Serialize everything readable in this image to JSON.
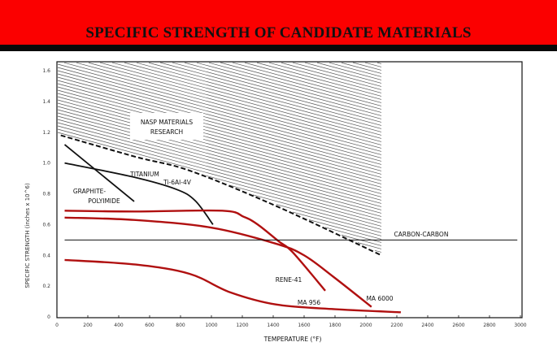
{
  "chart_data": {
    "type": "line",
    "title": "SPECIFIC STRENGTH OF CANDIDATE MATERIALS",
    "xlabel": "TEMPERATURE (°F)",
    "ylabel": "SPECIFIC STRENGTH (inches x 10^6)",
    "xlim": [
      0,
      3000
    ],
    "ylim": [
      0,
      1.65
    ],
    "xticks": [
      0,
      200,
      400,
      600,
      800,
      1000,
      1200,
      1400,
      1600,
      1800,
      2000,
      2200,
      2400,
      2600,
      2800,
      3000
    ],
    "yticks": [
      0,
      0.2,
      0.4,
      0.6,
      0.8,
      1.0,
      1.2,
      1.4,
      1.6
    ],
    "grid": false,
    "colors": {
      "banner": "#fb0000",
      "alloy": "#b01010",
      "other": "#111111"
    },
    "regions": [
      {
        "name": "NASP MATERIALS RESEARCH",
        "label_lines": [
          "NASP MATERIALS",
          "RESEARCH"
        ],
        "style": "hatched",
        "x_range": [
          0,
          2100
        ],
        "lower_boundary": {
          "x": [
            0,
            510,
            860,
            1420,
            2100
          ],
          "y": [
            1.18,
            1.04,
            0.95,
            0.72,
            0.4
          ]
        }
      }
    ],
    "series": [
      {
        "name": "GRAPHITE-POLYIMIDE",
        "label_lines": [
          "GRAPHITE-",
          "POLYIMIDE"
        ],
        "color": "#111111",
        "x": [
          50,
          500
        ],
        "y": [
          1.12,
          0.75
        ]
      },
      {
        "name": "TITANIUM Ti-6Al-4V",
        "label_lines": [
          "TITANIUM",
          "Ti-6Al-4V"
        ],
        "color": "#111111",
        "x": [
          50,
          490,
          770,
          895,
          1010
        ],
        "y": [
          1.0,
          0.91,
          0.83,
          0.755,
          0.6
        ]
      },
      {
        "name": "RENE-41",
        "color": "#b01010",
        "x": [
          50,
          500,
          1070,
          1210,
          1300,
          1437,
          1526,
          1737
        ],
        "y": [
          0.69,
          0.685,
          0.69,
          0.65,
          0.6,
          0.49,
          0.42,
          0.17
        ]
      },
      {
        "name": "MA 6000",
        "color": "#b01010",
        "x": [
          50,
          500,
          1000,
          1420,
          1600,
          1790,
          2036
        ],
        "y": [
          0.645,
          0.63,
          0.58,
          0.475,
          0.4,
          0.26,
          0.065
        ]
      },
      {
        "name": "MA 956",
        "color": "#b01010",
        "x": [
          50,
          510,
          858,
          1121,
          1421,
          1800,
          2226
        ],
        "y": [
          0.37,
          0.34,
          0.28,
          0.16,
          0.08,
          0.05,
          0.03
        ]
      },
      {
        "name": "CARBON-CARBON",
        "color": "#111111",
        "x": [
          50,
          2980
        ],
        "y": [
          0.5,
          0.5
        ]
      }
    ]
  }
}
